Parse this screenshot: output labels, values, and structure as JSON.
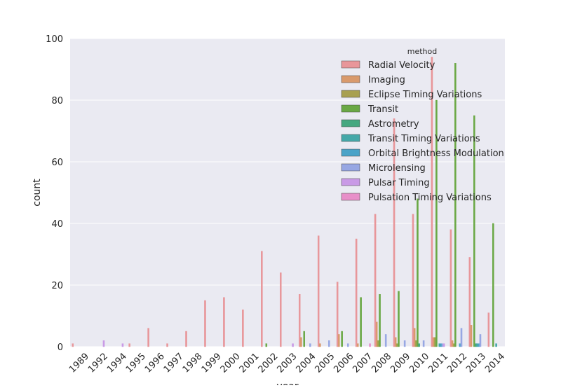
{
  "chart_data": {
    "type": "bar",
    "xlabel": "year",
    "ylabel": "count",
    "ylim": [
      0,
      100
    ],
    "yticks": [
      0,
      20,
      40,
      60,
      80,
      100
    ],
    "grid": true,
    "legend_position": "top-right",
    "legend_title": "method",
    "categories": [
      "1989",
      "1992",
      "1994",
      "1995",
      "1996",
      "1997",
      "1998",
      "1999",
      "2000",
      "2001",
      "2002",
      "2003",
      "2004",
      "2005",
      "2006",
      "2007",
      "2008",
      "2009",
      "2010",
      "2011",
      "2012",
      "2013",
      "2014"
    ],
    "series": [
      {
        "name": "Radial Velocity",
        "color": "#e8969a",
        "values": [
          1,
          0,
          0,
          1,
          6,
          1,
          5,
          15,
          16,
          12,
          31,
          24,
          17,
          36,
          21,
          35,
          43,
          74,
          43,
          94,
          38,
          29,
          11
        ]
      },
      {
        "name": "Imaging",
        "color": "#d99a6c",
        "values": [
          0,
          0,
          0,
          0,
          0,
          0,
          0,
          0,
          0,
          0,
          0,
          0,
          3,
          1,
          4,
          1,
          8,
          3,
          6,
          3,
          2,
          7,
          0
        ]
      },
      {
        "name": "Eclipse Timing Variations",
        "color": "#a8a050",
        "values": [
          0,
          0,
          0,
          0,
          0,
          0,
          0,
          0,
          0,
          0,
          0,
          0,
          0,
          0,
          0,
          0,
          2,
          1,
          2,
          3,
          1,
          0,
          0
        ]
      },
      {
        "name": "Transit",
        "color": "#6aa845",
        "values": [
          0,
          0,
          0,
          0,
          0,
          0,
          0,
          0,
          0,
          0,
          1,
          0,
          5,
          0,
          5,
          16,
          17,
          18,
          48,
          80,
          92,
          75,
          40
        ]
      },
      {
        "name": "Astrometry",
        "color": "#45a880",
        "values": [
          0,
          0,
          0,
          0,
          0,
          0,
          0,
          0,
          0,
          0,
          0,
          0,
          0,
          0,
          0,
          0,
          0,
          0,
          1,
          0,
          0,
          1,
          0
        ]
      },
      {
        "name": "Transit Timing Variations",
        "color": "#45a8a8",
        "values": [
          0,
          0,
          0,
          0,
          0,
          0,
          0,
          0,
          0,
          0,
          0,
          0,
          0,
          0,
          0,
          0,
          0,
          0,
          0,
          1,
          0,
          1,
          1
        ]
      },
      {
        "name": "Orbital Brightness Modulation",
        "color": "#4aa3c8",
        "values": [
          0,
          0,
          0,
          0,
          0,
          0,
          0,
          0,
          0,
          0,
          0,
          0,
          0,
          0,
          0,
          0,
          0,
          0,
          0,
          1,
          1,
          1,
          0
        ]
      },
      {
        "name": "Microlensing",
        "color": "#97a7e3",
        "values": [
          0,
          0,
          0,
          0,
          0,
          0,
          0,
          0,
          0,
          0,
          0,
          0,
          1,
          2,
          1,
          0,
          4,
          2,
          2,
          1,
          6,
          4,
          0
        ]
      },
      {
        "name": "Pulsar Timing",
        "color": "#c99ae6",
        "values": [
          0,
          2,
          1,
          0,
          0,
          0,
          0,
          0,
          0,
          0,
          0,
          1,
          0,
          0,
          0,
          0,
          0,
          0,
          0,
          1,
          0,
          0,
          0
        ]
      },
      {
        "name": "Pulsation Timing Variations",
        "color": "#e88fc9",
        "values": [
          0,
          0,
          0,
          0,
          0,
          0,
          0,
          0,
          0,
          0,
          0,
          0,
          0,
          0,
          0,
          1,
          0,
          0,
          0,
          0,
          0,
          0,
          0
        ]
      }
    ]
  }
}
